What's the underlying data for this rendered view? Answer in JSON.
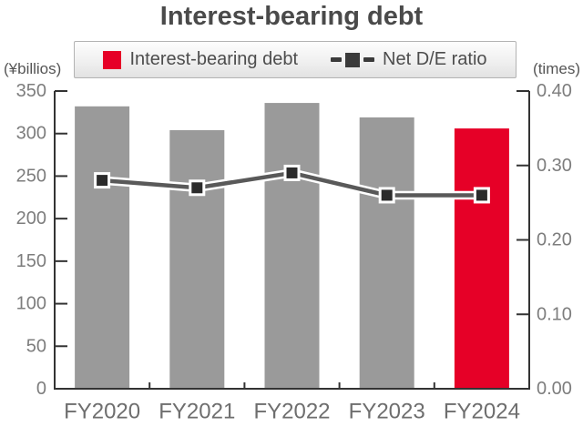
{
  "title": "Interest-bearing debt",
  "legend": {
    "items": [
      {
        "label": "Interest-bearing debt",
        "swatch": "bar-swatch",
        "color": "#e60027"
      },
      {
        "label": "Net D/E ratio",
        "swatch": "line-marker-swatch",
        "color": "#3a3a3a"
      }
    ]
  },
  "left_axis": {
    "unit": "(¥billios)",
    "tick_labels": [
      "350",
      "300",
      "250",
      "200",
      "150",
      "100",
      "50",
      "0"
    ]
  },
  "right_axis": {
    "unit": "(times)",
    "tick_labels": [
      "0.40",
      "0.30",
      "0.20",
      "0.10",
      "0.00"
    ]
  },
  "chart_data": {
    "type": "bar",
    "title": "Interest-bearing debt",
    "categories": [
      "FY2020",
      "FY2021",
      "FY2022",
      "FY2023",
      "FY2024"
    ],
    "series": [
      {
        "name": "Interest-bearing debt",
        "type": "bar",
        "axis": "left",
        "values": [
          332,
          304,
          336,
          319,
          306
        ],
        "bar_colors": [
          "#9a9a9a",
          "#9a9a9a",
          "#9a9a9a",
          "#9a9a9a",
          "#e60027"
        ]
      },
      {
        "name": "Net D/E ratio",
        "type": "line",
        "axis": "right",
        "values": [
          0.28,
          0.27,
          0.29,
          0.26,
          0.26
        ],
        "line_color": "#595959",
        "line_casing_color": "#ffffff",
        "marker": "square",
        "marker_color": "#2b2b2b",
        "marker_stroke": "#ffffff"
      }
    ],
    "left_ylabel": "(¥billios)",
    "right_ylabel": "(times)",
    "left_ylim": [
      0,
      350
    ],
    "left_tick_step": 50,
    "right_ylim": [
      0,
      0.4
    ],
    "right_tick_step": 0.1,
    "grid": false,
    "legend_position": "top"
  },
  "colors": {
    "accent_red": "#e60027",
    "bar_gray": "#9a9a9a",
    "axis_spine": "#333333",
    "tick_label": "#7d7d7d",
    "category_label": "#6e6e6e",
    "title_text": "#4a4a4a"
  }
}
